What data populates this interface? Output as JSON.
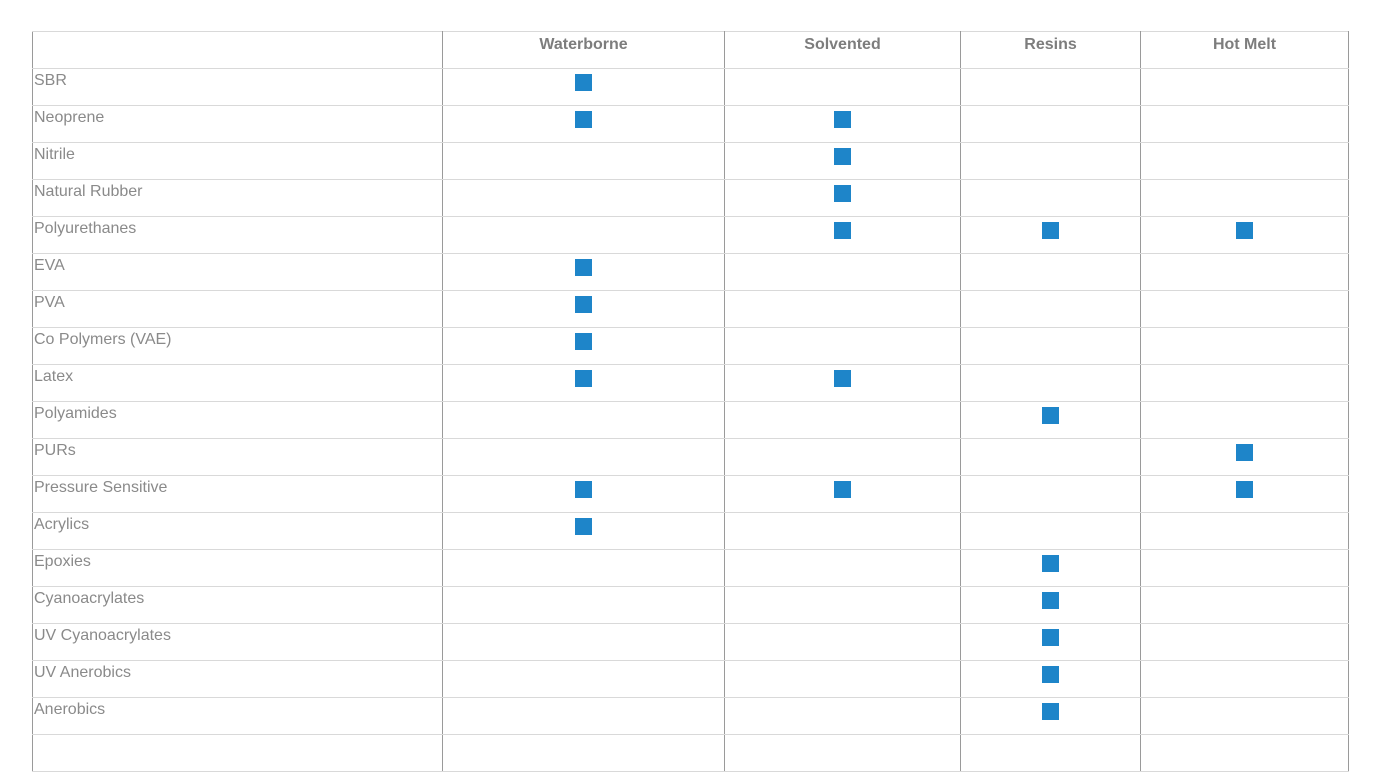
{
  "colors": {
    "mark": "#1e85c9",
    "text": "#8a8a8a",
    "header_text": "#7d7d7d",
    "grid_vertical": "#9a9a9a",
    "grid_horizontal": "#d9d9d9"
  },
  "table": {
    "columns": [
      "",
      "Waterborne",
      "Solvented",
      "Resins",
      "Hot Melt"
    ],
    "rows": [
      {
        "label": "SBR",
        "marks": [
          true,
          false,
          false,
          false
        ]
      },
      {
        "label": "Neoprene",
        "marks": [
          true,
          true,
          false,
          false
        ]
      },
      {
        "label": "Nitrile",
        "marks": [
          false,
          true,
          false,
          false
        ]
      },
      {
        "label": "Natural Rubber",
        "marks": [
          false,
          true,
          false,
          false
        ]
      },
      {
        "label": "Polyurethanes",
        "marks": [
          false,
          true,
          true,
          true
        ]
      },
      {
        "label": "EVA",
        "marks": [
          true,
          false,
          false,
          false
        ]
      },
      {
        "label": "PVA",
        "marks": [
          true,
          false,
          false,
          false
        ]
      },
      {
        "label": "Co Polymers (VAE)",
        "marks": [
          true,
          false,
          false,
          false
        ]
      },
      {
        "label": "Latex",
        "marks": [
          true,
          true,
          false,
          false
        ]
      },
      {
        "label": "Polyamides",
        "marks": [
          false,
          false,
          true,
          false
        ]
      },
      {
        "label": "PURs",
        "marks": [
          false,
          false,
          false,
          true
        ]
      },
      {
        "label": "Pressure Sensitive",
        "marks": [
          true,
          true,
          false,
          true
        ]
      },
      {
        "label": "Acrylics",
        "marks": [
          true,
          false,
          false,
          false
        ]
      },
      {
        "label": "Epoxies",
        "marks": [
          false,
          false,
          true,
          false
        ]
      },
      {
        "label": "Cyanoacrylates",
        "marks": [
          false,
          false,
          true,
          false
        ]
      },
      {
        "label": "UV Cyanoacrylates",
        "marks": [
          false,
          false,
          true,
          false
        ]
      },
      {
        "label": "UV Anerobics",
        "marks": [
          false,
          false,
          true,
          false
        ]
      },
      {
        "label": "Anerobics",
        "marks": [
          false,
          false,
          true,
          false
        ]
      },
      {
        "label": "",
        "marks": [
          false,
          false,
          false,
          false
        ]
      }
    ]
  }
}
